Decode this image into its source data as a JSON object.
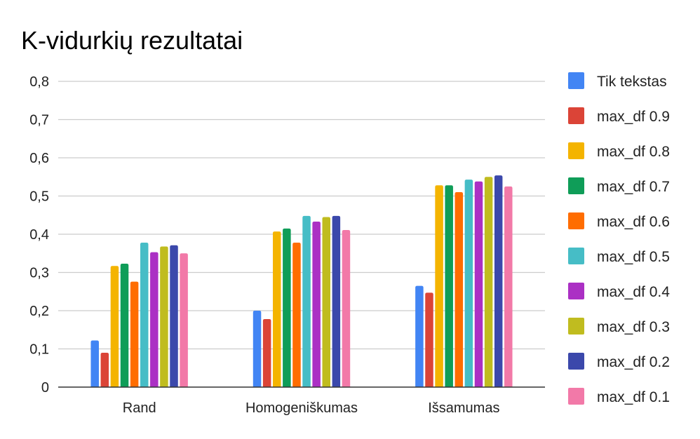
{
  "chart_data": {
    "type": "bar",
    "title": "K-vidurkių rezultatai",
    "xlabel": "",
    "ylabel": "",
    "categories": [
      "Rand",
      "Homogeniškumas",
      "Išsamumas"
    ],
    "ylim": [
      0,
      0.8
    ],
    "yticks": [
      0,
      0.1,
      0.2,
      0.3,
      0.4,
      0.5,
      0.6,
      0.7,
      0.8
    ],
    "ytick_labels": [
      "0",
      "0,1",
      "0,2",
      "0,3",
      "0,4",
      "0,5",
      "0,6",
      "0,7",
      "0,8"
    ],
    "grid": true,
    "legend_position": "right",
    "series": [
      {
        "name": "Tik tekstas",
        "color": "#4285F4",
        "values": [
          0.122,
          0.2,
          0.265
        ]
      },
      {
        "name": "max_df 0.9",
        "color": "#DB4437",
        "values": [
          0.09,
          0.178,
          0.247
        ]
      },
      {
        "name": "max_df 0.8",
        "color": "#F4B400",
        "values": [
          0.317,
          0.407,
          0.528
        ]
      },
      {
        "name": "max_df 0.7",
        "color": "#0F9D58",
        "values": [
          0.323,
          0.415,
          0.528
        ]
      },
      {
        "name": "max_df 0.6",
        "color": "#FF6D01",
        "values": [
          0.276,
          0.378,
          0.51
        ]
      },
      {
        "name": "max_df 0.5",
        "color": "#46BDC6",
        "values": [
          0.378,
          0.448,
          0.543
        ]
      },
      {
        "name": "max_df 0.4",
        "color": "#AB30C4",
        "values": [
          0.353,
          0.433,
          0.538
        ]
      },
      {
        "name": "max_df 0.3",
        "color": "#C0BC1F",
        "values": [
          0.368,
          0.445,
          0.55
        ]
      },
      {
        "name": "max_df 0.2",
        "color": "#3B48AB",
        "values": [
          0.371,
          0.448,
          0.554
        ]
      },
      {
        "name": "max_df 0.1",
        "color": "#F279A8",
        "values": [
          0.35,
          0.411,
          0.525
        ]
      }
    ]
  }
}
